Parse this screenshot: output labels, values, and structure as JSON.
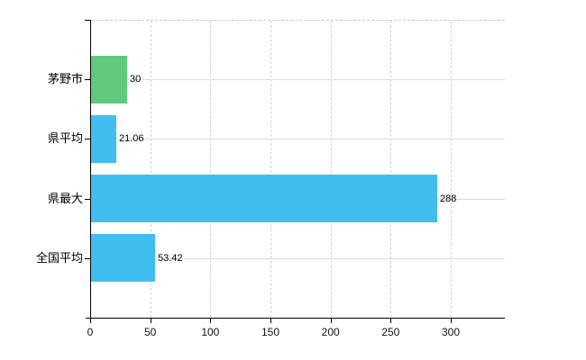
{
  "chart_data": {
    "type": "bar",
    "orientation": "horizontal",
    "title": "",
    "xlabel": "",
    "ylabel": "",
    "categories": [
      "茅野市",
      "県平均",
      "県最大",
      "全国平均"
    ],
    "values": [
      30,
      21.06,
      288,
      53.42
    ],
    "value_labels": [
      "30",
      "21.06",
      "288",
      "53.42"
    ],
    "bar_colors": [
      "#62c87c",
      "#40bef0",
      "#40bef0",
      "#40bef0"
    ],
    "x_ticks": [
      0,
      50,
      100,
      150,
      200,
      250,
      300
    ],
    "x_tick_labels": [
      "0",
      "50",
      "100",
      "150",
      "200",
      "250",
      "300"
    ],
    "xlim": [
      0,
      345
    ],
    "grid": true,
    "legend": null
  },
  "colors": {
    "bar_blue": "#40bef0",
    "bar_green": "#62c87c",
    "axis": "#000000",
    "gridline_horizontal": "#dcdcdc",
    "gridline_vertical": "#d6d0da",
    "plot_border_top": "#c9c9c9",
    "text": "#000000",
    "background": "#ffffff"
  }
}
